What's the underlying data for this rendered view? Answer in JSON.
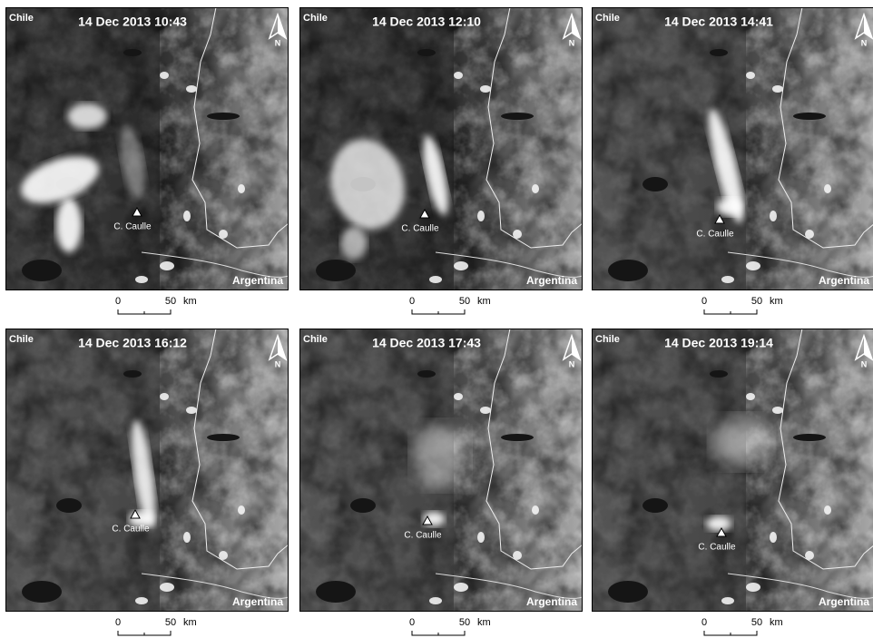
{
  "figure": {
    "panels": [
      {
        "time": "14 Dec 2013 10:43"
      },
      {
        "time": "14 Dec 2013 12:10"
      },
      {
        "time": "14 Dec 2013 14:41"
      },
      {
        "time": "14 Dec 2013 16:12"
      },
      {
        "time": "14 Dec 2013 17:43"
      },
      {
        "time": "14 Dec 2013 19:14"
      }
    ],
    "map_labels": {
      "west_country": "Chile",
      "east_country": "Argentina",
      "volcano": "C. Caulle",
      "north": "N"
    },
    "scale_bar": {
      "ticks": [
        0,
        50
      ],
      "unit": "km"
    }
  }
}
